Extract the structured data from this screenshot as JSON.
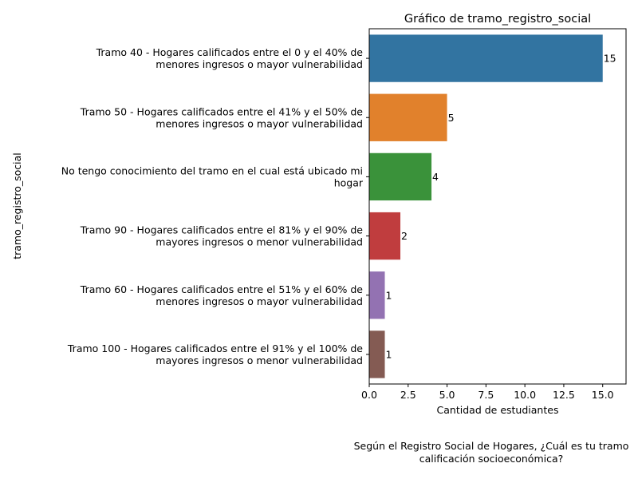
{
  "chart_data": {
    "type": "bar",
    "orientation": "horizontal",
    "title": "Gráfico de tramo_registro_social",
    "xlabel": "Cantidad de estudiantes",
    "ylabel": "tramo_registro_social",
    "caption": [
      "Según el Registro Social de Hogares, ¿Cuál es tu tramo",
      "calificación socioeconómica?"
    ],
    "categories": [
      [
        "Tramo 40 - Hogares calificados entre el 0 y el 40% de",
        "menores ingresos o mayor vulnerabilidad"
      ],
      [
        "Tramo 50 - Hogares calificados entre el 41% y el 50% de",
        "menores ingresos o mayor vulnerabilidad"
      ],
      [
        "No tengo conocimiento del tramo en el cual está ubicado mi",
        "hogar"
      ],
      [
        "Tramo 90 - Hogares calificados entre el 81% y el 90% de",
        "mayores ingresos o menor vulnerabilidad"
      ],
      [
        "Tramo 60 - Hogares calificados entre el 51% y el 60% de",
        "menores ingresos o mayor vulnerabilidad"
      ],
      [
        "Tramo 100 - Hogares calificados entre el 91% y el 100% de",
        "mayores ingresos o menor vulnerabilidad"
      ]
    ],
    "values": [
      15,
      5,
      4,
      2,
      1,
      1
    ],
    "data_labels": [
      "15",
      "5",
      "4",
      "2",
      "1",
      "1"
    ],
    "colors": [
      "#3274a1",
      "#e1812c",
      "#3a923a",
      "#c03d3e",
      "#9372b2",
      "#845b53"
    ],
    "xlim": [
      0,
      16.5
    ],
    "xticks": [
      0,
      2.5,
      5,
      7.5,
      10,
      12.5,
      15
    ],
    "xtick_labels": [
      "0.0",
      "2.5",
      "5.0",
      "7.5",
      "10.0",
      "12.5",
      "15.0"
    ],
    "grid": false,
    "legend": "none"
  }
}
